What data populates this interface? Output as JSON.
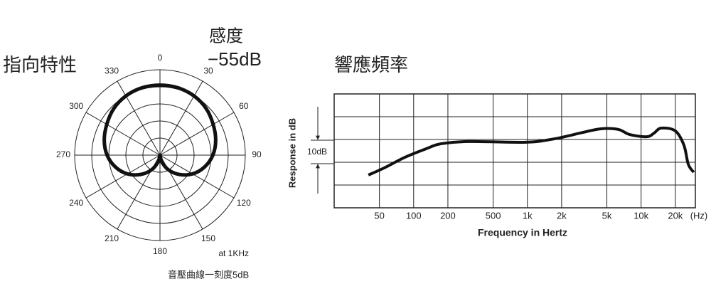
{
  "chart_data": [
    {
      "type": "polar",
      "title": "指向特性",
      "annotations": [
        "感度",
        "−55dB",
        "at 1KHz",
        "音壓曲線一刻度5dB"
      ],
      "theta": [
        0,
        15,
        30,
        45,
        60,
        75,
        90,
        105,
        120,
        135,
        150,
        165,
        180,
        195,
        210,
        225,
        240,
        255,
        270,
        285,
        300,
        315,
        330,
        345
      ],
      "values": [
        20.5,
        20.4,
        20,
        19.2,
        18,
        16.9,
        15.5,
        13.5,
        11,
        8,
        5,
        2,
        0,
        2,
        5,
        8,
        11,
        13.5,
        15.5,
        16.9,
        18,
        19.2,
        20,
        20.4
      ],
      "color": "#111111",
      "rlim": [
        0,
        25
      ],
      "rticks": [
        5,
        10,
        15,
        20,
        25
      ],
      "thetaticks": [
        0,
        30,
        60,
        90,
        120,
        150,
        180,
        210,
        240,
        270,
        300,
        330
      ]
    },
    {
      "type": "line",
      "title": "響應頻率",
      "xlabel": "Frequency in Hertz",
      "ylabel": "Response in dB",
      "x_unit": "(Hz)",
      "scale_label": "10dB",
      "log_x": true,
      "grid": true,
      "x": [
        40,
        55,
        84,
        130,
        173,
        307,
        970,
        1730,
        3080,
        4440,
        6320,
        7900,
        11200,
        13000,
        15000,
        20000,
        23800,
        26000,
        29000
      ],
      "series": [
        {
          "name": "Response",
          "color": "#111111",
          "values": [
            -15.6,
            -12.5,
            -7.8,
            -4,
            -1.9,
            -0.9,
            -1.2,
            0.3,
            3.1,
            4.7,
            4.4,
            2.2,
            1.2,
            2.8,
            5,
            3.75,
            -2.5,
            -10.9,
            -14.4
          ]
        }
      ],
      "xlim": [
        20,
        30000
      ],
      "xticks": [
        50,
        100,
        200,
        500,
        {
          "value": 1000,
          "label": "1k"
        },
        {
          "value": 2000,
          "label": "2k"
        },
        {
          "value": 5000,
          "label": "5k"
        },
        {
          "value": 10000,
          "label": "10k"
        },
        {
          "value": 20000,
          "label": "20k"
        }
      ],
      "ylim": [
        -30,
        20
      ],
      "yticks": [
        -30,
        -20,
        -10,
        0,
        10,
        20
      ]
    }
  ]
}
